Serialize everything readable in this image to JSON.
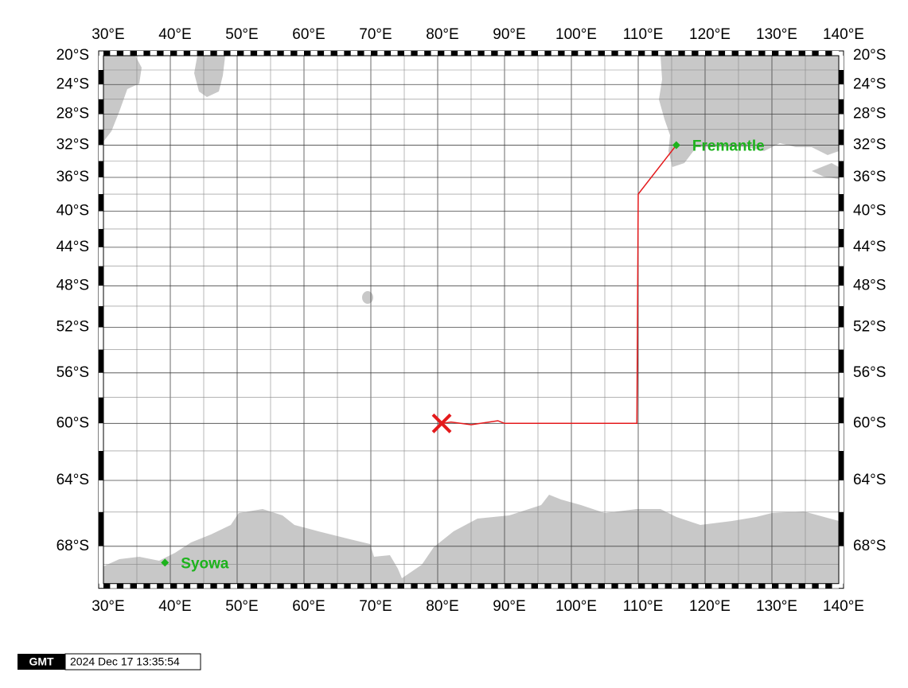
{
  "map": {
    "xlim": [
      30,
      140
    ],
    "ylim": [
      -20,
      -70
    ],
    "xticks": [
      {
        "value": 30,
        "label": "30°E"
      },
      {
        "value": 40,
        "label": "40°E"
      },
      {
        "value": 50,
        "label": "50°E"
      },
      {
        "value": 60,
        "label": "60°E"
      },
      {
        "value": 70,
        "label": "70°E"
      },
      {
        "value": 80,
        "label": "80°E"
      },
      {
        "value": 90,
        "label": "90°E"
      },
      {
        "value": 100,
        "label": "100°E"
      },
      {
        "value": 110,
        "label": "110°E"
      },
      {
        "value": 120,
        "label": "120°E"
      },
      {
        "value": 130,
        "label": "130°E"
      },
      {
        "value": 140,
        "label": "140°E"
      }
    ],
    "yticks": [
      {
        "value": -20,
        "label": "20°S"
      },
      {
        "value": -24,
        "label": "24°S"
      },
      {
        "value": -28,
        "label": "28°S"
      },
      {
        "value": -32,
        "label": "32°S"
      },
      {
        "value": -36,
        "label": "36°S"
      },
      {
        "value": -40,
        "label": "40°S"
      },
      {
        "value": -44,
        "label": "44°S"
      },
      {
        "value": -48,
        "label": "48°S"
      },
      {
        "value": -52,
        "label": "52°S"
      },
      {
        "value": -56,
        "label": "56°S"
      },
      {
        "value": -60,
        "label": "60°S"
      },
      {
        "value": -64,
        "label": "64°S"
      },
      {
        "value": -68,
        "label": "68°S"
      }
    ],
    "grid": true,
    "land_color": "#c8c8c8",
    "track": {
      "color": "#e41a1c",
      "lon": [
        115.7,
        110,
        109.8,
        90,
        89,
        85,
        82,
        80.6
      ],
      "lat": [
        -32,
        -38,
        -60,
        -60,
        -59.8,
        -60.1,
        -59.9,
        -60
      ]
    },
    "position": {
      "lon": 80.6,
      "lat": -60,
      "color": "#e41a1c"
    },
    "stations": [
      {
        "name": "Fremantle",
        "lon": 115.7,
        "lat": -32,
        "color": "#1db31d"
      },
      {
        "name": "Syowa",
        "lon": 39.2,
        "lat": -68.9,
        "color": "#1db31d"
      }
    ]
  },
  "footer": {
    "logo": "GMT",
    "timestamp": "2024 Dec 17 13:35:54"
  }
}
